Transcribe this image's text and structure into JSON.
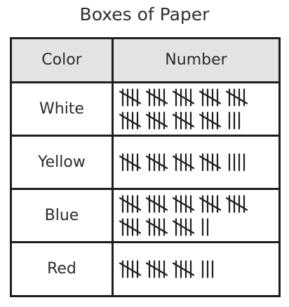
{
  "title": "Boxes of Paper",
  "table": {
    "headers": [
      "Color",
      "Number"
    ],
    "rows": [
      {
        "label": "White",
        "count": 48
      },
      {
        "label": "Yellow",
        "count": 24
      },
      {
        "label": "Blue",
        "count": 42
      },
      {
        "label": "Red",
        "count": 18
      }
    ]
  },
  "chart_data": {
    "type": "table",
    "title": "Boxes of Paper",
    "columns": [
      "Color",
      "Number"
    ],
    "categories": [
      "White",
      "Yellow",
      "Blue",
      "Red"
    ],
    "values": [
      48,
      24,
      42,
      18
    ],
    "encoding": "tally marks (groups of five)"
  }
}
